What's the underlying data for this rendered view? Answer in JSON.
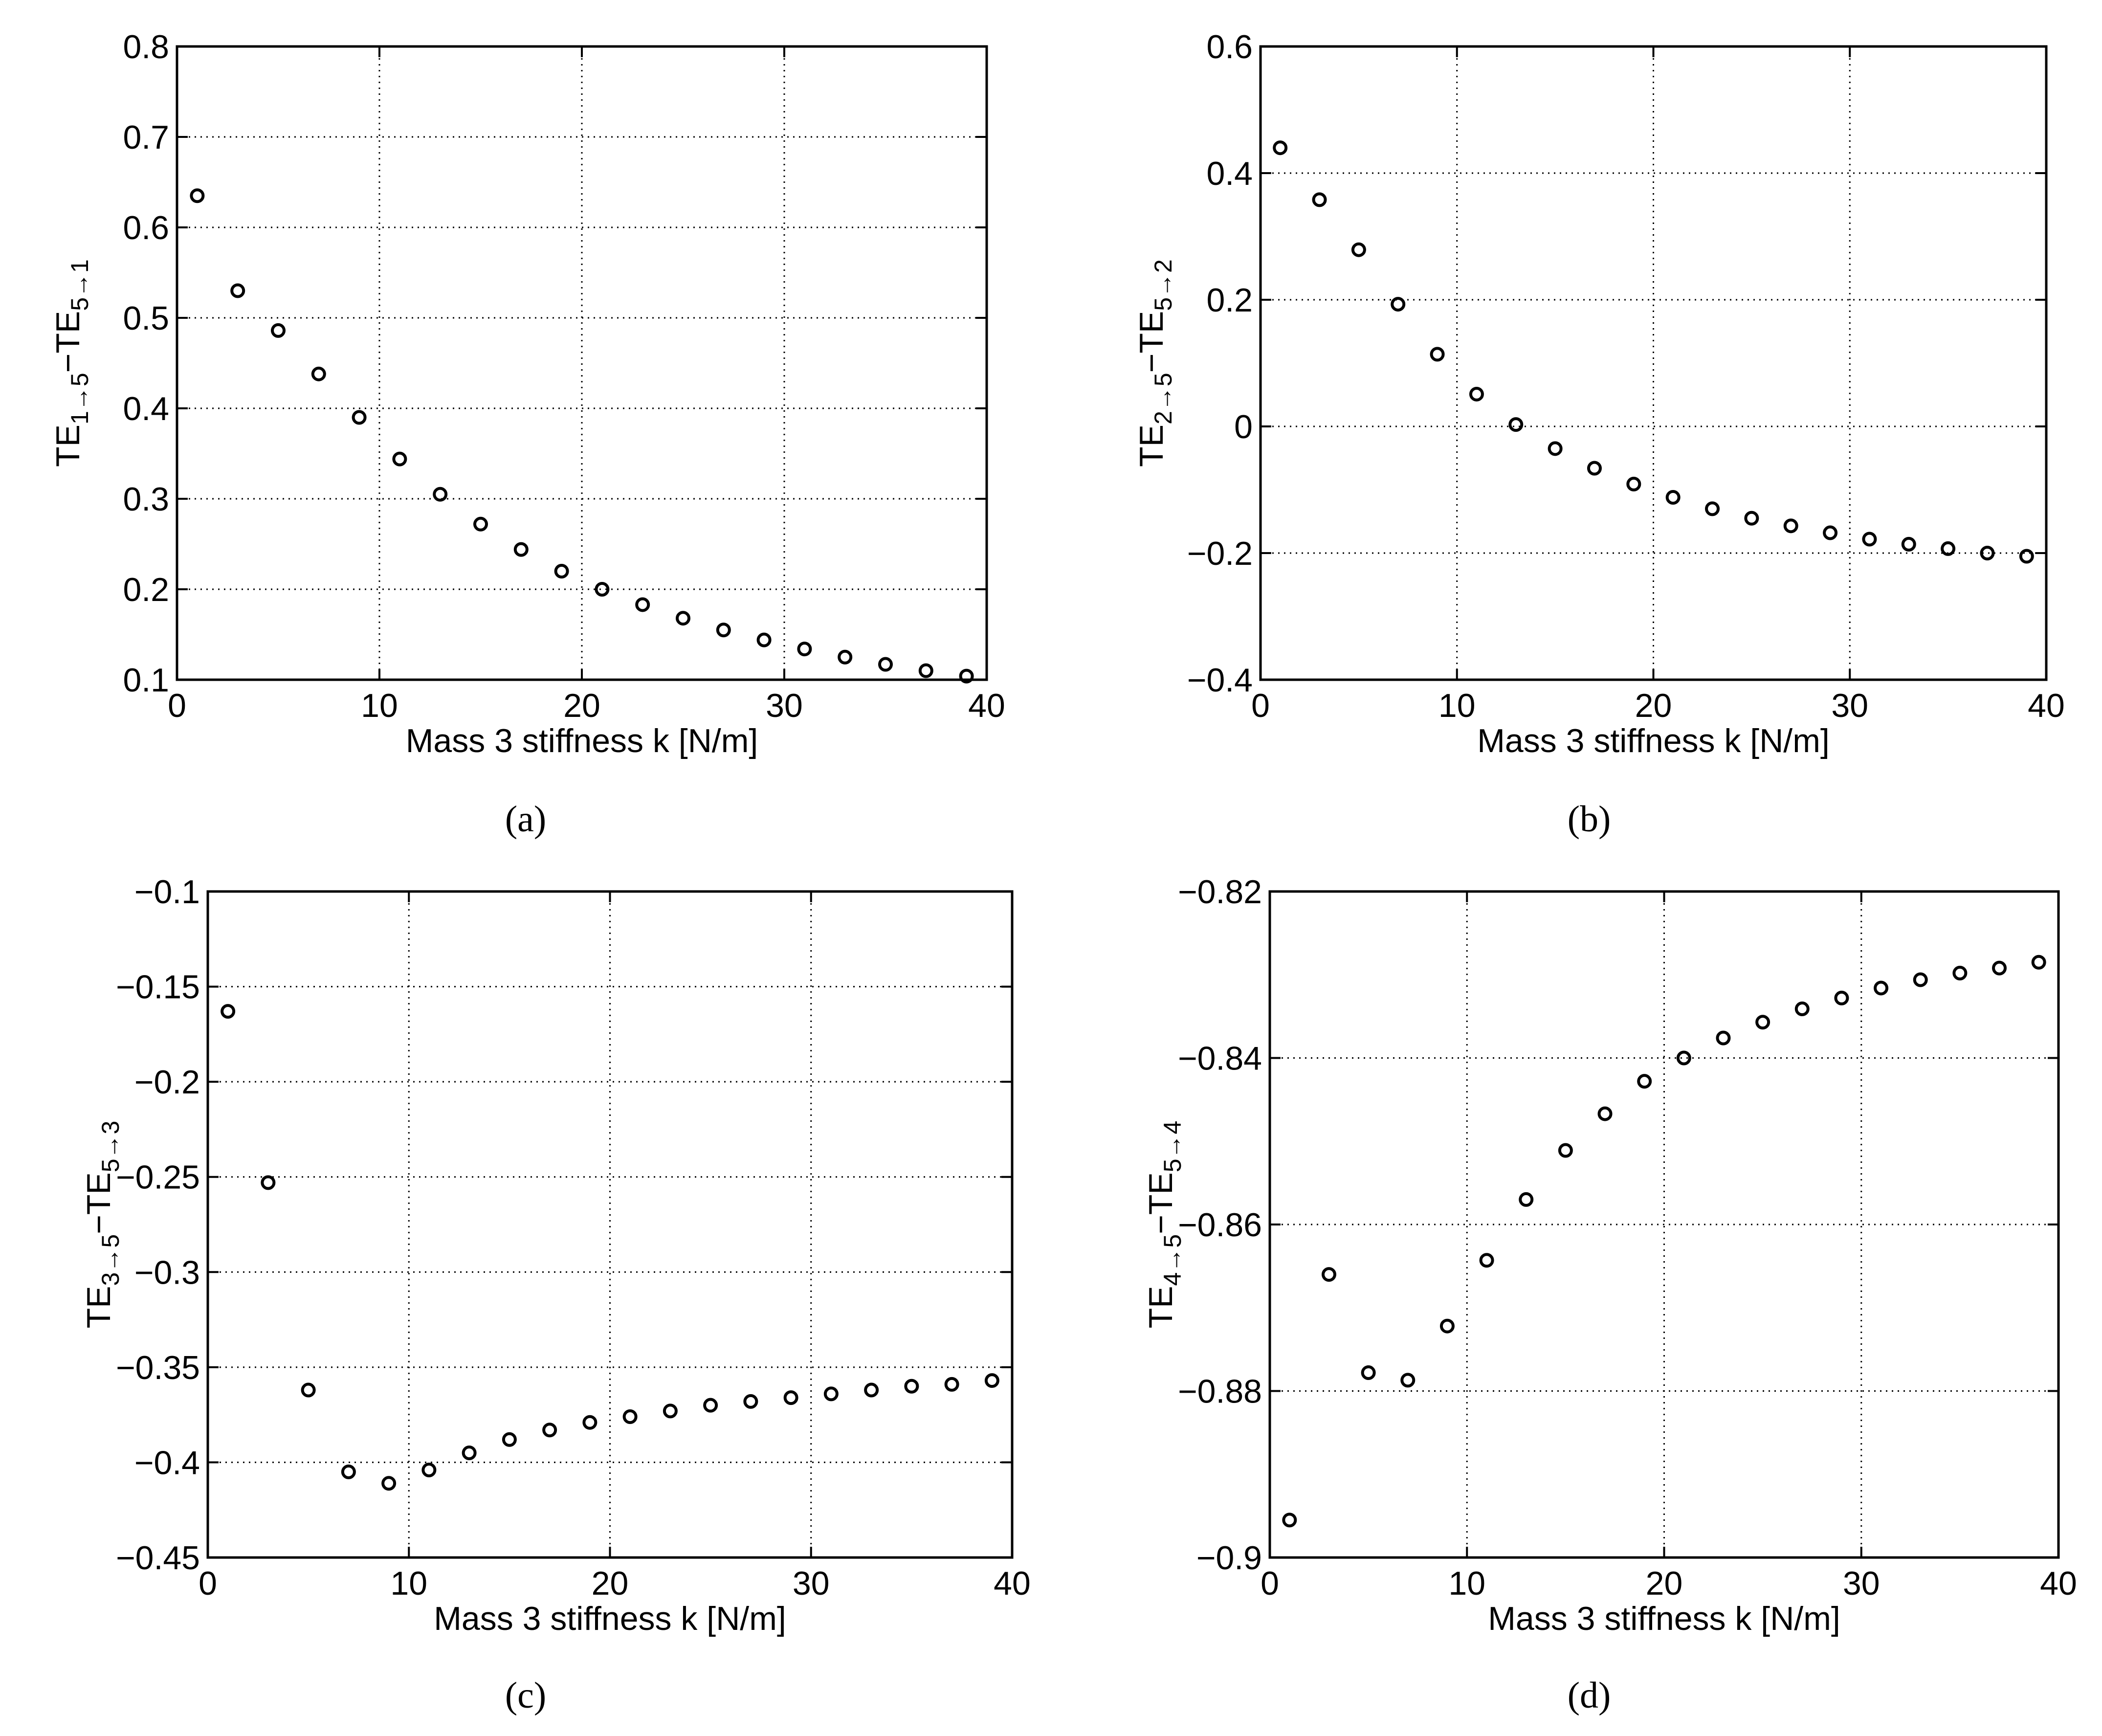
{
  "chart_data": [
    {
      "type": "scatter",
      "caption": "(a)",
      "xlabel": "Mass 3 stiffness k [N/m]",
      "ylabel": {
        "base": "TE",
        "sub1": "1→5",
        "mid": "−TE",
        "sub2": "5→1"
      },
      "xlim": [
        0,
        40
      ],
      "ylim": [
        0.1,
        0.8
      ],
      "xticks": [
        0,
        10,
        20,
        30,
        40
      ],
      "xtick_labels": [
        "0",
        "10",
        "20",
        "30",
        "40"
      ],
      "yticks": [
        0.1,
        0.2,
        0.3,
        0.4,
        0.5,
        0.6,
        0.7,
        0.8
      ],
      "ytick_labels": [
        "0.1",
        "0.2",
        "0.3",
        "0.4",
        "0.5",
        "0.6",
        "0.7",
        "0.8"
      ],
      "grid": true,
      "x": [
        1,
        3,
        5,
        7,
        9,
        11,
        13,
        15,
        17,
        19,
        21,
        23,
        25,
        27,
        29,
        31,
        33,
        35,
        37,
        39
      ],
      "y": [
        0.635,
        0.53,
        0.486,
        0.438,
        0.39,
        0.344,
        0.305,
        0.272,
        0.244,
        0.22,
        0.2,
        0.183,
        0.168,
        0.155,
        0.144,
        0.134,
        0.125,
        0.117,
        0.11,
        0.104
      ]
    },
    {
      "type": "scatter",
      "caption": "(b)",
      "xlabel": "Mass 3 stiffness k [N/m]",
      "ylabel": {
        "base": "TE",
        "sub1": "2→5",
        "mid": "−TE",
        "sub2": "5→2"
      },
      "xlim": [
        0,
        40
      ],
      "ylim": [
        -0.4,
        0.6
      ],
      "xticks": [
        0,
        10,
        20,
        30,
        40
      ],
      "xtick_labels": [
        "0",
        "10",
        "20",
        "30",
        "40"
      ],
      "yticks": [
        -0.4,
        -0.2,
        0,
        0.2,
        0.4,
        0.6
      ],
      "ytick_labels": [
        "−0.4",
        "−0.2",
        "0",
        "0.2",
        "0.4",
        "0.6"
      ],
      "grid": true,
      "x": [
        1,
        3,
        5,
        7,
        9,
        11,
        13,
        15,
        17,
        19,
        21,
        23,
        25,
        27,
        29,
        31,
        33,
        35,
        37,
        39
      ],
      "y": [
        0.44,
        0.358,
        0.279,
        0.193,
        0.114,
        0.051,
        0.003,
        -0.035,
        -0.066,
        -0.091,
        -0.112,
        -0.13,
        -0.145,
        -0.157,
        -0.168,
        -0.178,
        -0.186,
        -0.193,
        -0.2,
        -0.205
      ]
    },
    {
      "type": "scatter",
      "caption": "(c)",
      "xlabel": "Mass 3 stiffness k [N/m]",
      "ylabel": {
        "base": "TE",
        "sub1": "3→5",
        "mid": "−TE",
        "sub2": "5→3"
      },
      "xlim": [
        0,
        40
      ],
      "ylim": [
        -0.45,
        -0.1
      ],
      "xticks": [
        0,
        10,
        20,
        30,
        40
      ],
      "xtick_labels": [
        "0",
        "10",
        "20",
        "30",
        "40"
      ],
      "yticks": [
        -0.45,
        -0.4,
        -0.35,
        -0.3,
        -0.25,
        -0.2,
        -0.15,
        -0.1
      ],
      "ytick_labels": [
        "−0.45",
        "−0.4",
        "−0.35",
        "−0.3",
        "−0.25",
        "−0.2",
        "−0.15",
        "−0.1"
      ],
      "grid": true,
      "x": [
        1,
        3,
        5,
        7,
        9,
        11,
        13,
        15,
        17,
        19,
        21,
        23,
        25,
        27,
        29,
        31,
        33,
        35,
        37,
        39
      ],
      "y": [
        -0.163,
        -0.253,
        -0.362,
        -0.405,
        -0.411,
        -0.404,
        -0.395,
        -0.388,
        -0.383,
        -0.379,
        -0.376,
        -0.373,
        -0.37,
        -0.368,
        -0.366,
        -0.364,
        -0.362,
        -0.36,
        -0.359,
        -0.357
      ]
    },
    {
      "type": "scatter",
      "caption": "(d)",
      "xlabel": "Mass 3 stiffness k [N/m]",
      "ylabel": {
        "base": "TE",
        "sub1": "4→5",
        "mid": "−TE",
        "sub2": "5→4"
      },
      "xlim": [
        0,
        40
      ],
      "ylim": [
        -0.9,
        -0.82
      ],
      "xticks": [
        0,
        10,
        20,
        30,
        40
      ],
      "xtick_labels": [
        "0",
        "10",
        "20",
        "30",
        "40"
      ],
      "yticks": [
        -0.9,
        -0.88,
        -0.86,
        -0.84,
        -0.82
      ],
      "ytick_labels": [
        "−0.9",
        "−0.88",
        "−0.86",
        "−0.84",
        "−0.82"
      ],
      "grid": true,
      "x": [
        1,
        3,
        5,
        7,
        9,
        11,
        13,
        15,
        17,
        19,
        21,
        23,
        25,
        27,
        29,
        31,
        33,
        35,
        37,
        39
      ],
      "y": [
        -0.8955,
        -0.866,
        -0.8778,
        -0.8787,
        -0.8722,
        -0.8643,
        -0.857,
        -0.8511,
        -0.8467,
        -0.8428,
        -0.84,
        -0.8376,
        -0.8357,
        -0.8341,
        -0.8328,
        -0.8316,
        -0.8306,
        -0.8298,
        -0.8292,
        -0.8285
      ]
    }
  ]
}
